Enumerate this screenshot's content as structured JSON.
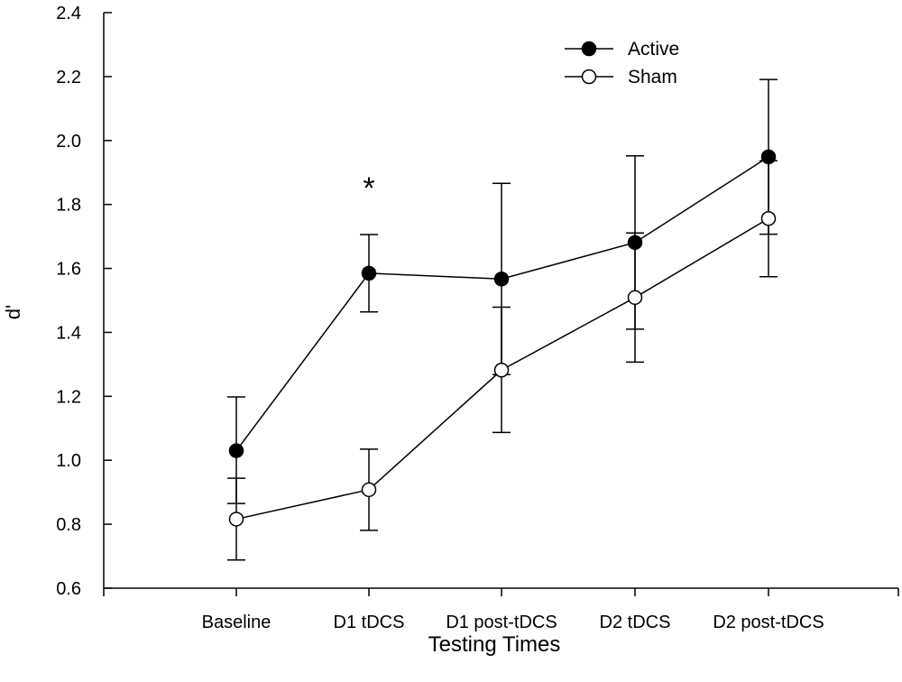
{
  "chart_data": {
    "type": "line",
    "xlabel": "Testing Times",
    "ylabel": "d'",
    "ylim": [
      0.6,
      2.4
    ],
    "yticks": [
      "0.6",
      "0.8",
      "1.0",
      "1.2",
      "1.4",
      "1.6",
      "1.8",
      "2.0",
      "2.2",
      "2.4"
    ],
    "categories": [
      "Baseline",
      "D1 tDCS",
      "D1 post-tDCS",
      "D2 tDCS",
      "D2 post-tDCS"
    ],
    "series": [
      {
        "name": "Active",
        "marker": "filled-circle",
        "values": [
          1.03,
          1.585,
          1.567,
          1.681,
          1.949
        ],
        "error_low": [
          0.865,
          1.464,
          1.268,
          1.41,
          1.707
        ],
        "error_high": [
          1.198,
          1.706,
          1.866,
          1.952,
          2.191
        ]
      },
      {
        "name": "Sham",
        "marker": "open-circle",
        "values": [
          0.816,
          0.908,
          1.282,
          1.509,
          1.756
        ],
        "error_low": [
          0.688,
          0.781,
          1.087,
          1.307,
          1.574
        ],
        "error_high": [
          0.944,
          1.035,
          1.479,
          1.711,
          1.937
        ]
      }
    ],
    "annotations": [
      {
        "text": "*",
        "category": "D1 tDCS",
        "y": 1.87
      }
    ],
    "legend_position": "top-right",
    "grid": false,
    "colors": {
      "line": "#000000",
      "filled_marker": "#000000",
      "open_marker": "#ffffff"
    }
  }
}
